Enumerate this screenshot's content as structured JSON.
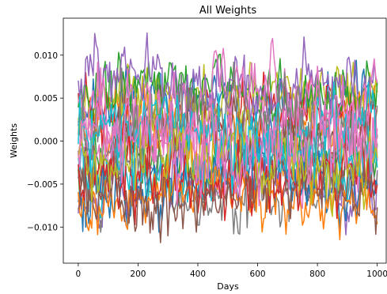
{
  "chart_data": {
    "type": "line",
    "title": "All Weights",
    "xlabel": "Days",
    "ylabel": "Weights",
    "xlim": [
      -50,
      1030
    ],
    "ylim": [
      -0.0142,
      0.0143
    ],
    "x_ticks": [
      0,
      200,
      400,
      600,
      800,
      1000
    ],
    "x_tick_labels": [
      "0",
      "200",
      "400",
      "600",
      "800",
      "1000"
    ],
    "y_ticks": [
      -0.01,
      -0.005,
      0.0,
      0.005,
      0.01
    ],
    "y_tick_labels": [
      "−0.010",
      "−0.005",
      "0.000",
      "0.005",
      "0.010"
    ],
    "grid": false,
    "legend": "none",
    "x_range": [
      0,
      1000
    ],
    "point_step": 5,
    "series_palette": [
      "#1f77b4",
      "#ff7f0e",
      "#2ca02c",
      "#d62728",
      "#9467bd",
      "#8c564b",
      "#e377c2",
      "#7f7f7f",
      "#bcbd22",
      "#17becf"
    ],
    "series": [
      {
        "color": "#1f77b4",
        "mean": 0.004,
        "spread": 0.0032,
        "seed": 11
      },
      {
        "color": "#ff7f0e",
        "mean": 0.0015,
        "spread": 0.004,
        "seed": 23
      },
      {
        "color": "#2ca02c",
        "mean": -0.002,
        "spread": 0.0038,
        "seed": 37
      },
      {
        "color": "#d62728",
        "mean": 0.003,
        "spread": 0.0035,
        "seed": 41
      },
      {
        "color": "#9467bd",
        "mean": -0.004,
        "spread": 0.0034,
        "seed": 53
      },
      {
        "color": "#8c564b",
        "mean": 0.0005,
        "spread": 0.0042,
        "seed": 67
      },
      {
        "color": "#e377c2",
        "mean": -0.001,
        "spread": 0.0044,
        "seed": 71
      },
      {
        "color": "#7f7f7f",
        "mean": -0.0055,
        "spread": 0.003,
        "seed": 83
      },
      {
        "color": "#bcbd22",
        "mean": 0.005,
        "spread": 0.0028,
        "seed": 97
      },
      {
        "color": "#17becf",
        "mean": -0.003,
        "spread": 0.0036,
        "seed": 101
      },
      {
        "color": "#1f77b4",
        "mean": -0.005,
        "spread": 0.0032,
        "seed": 113
      },
      {
        "color": "#ff7f0e",
        "mean": -0.0065,
        "spread": 0.0028,
        "seed": 127
      },
      {
        "color": "#2ca02c",
        "mean": 0.006,
        "spread": 0.003,
        "seed": 131
      },
      {
        "color": "#d62728",
        "mean": -0.0045,
        "spread": 0.0033,
        "seed": 149
      },
      {
        "color": "#9467bd",
        "mean": 0.0065,
        "spread": 0.0032,
        "seed": 151
      },
      {
        "color": "#8c564b",
        "mean": -0.006,
        "spread": 0.003,
        "seed": 163
      },
      {
        "color": "#e377c2",
        "mean": 0.0045,
        "spread": 0.0036,
        "seed": 173
      },
      {
        "color": "#7f7f7f",
        "mean": 0.002,
        "spread": 0.004,
        "seed": 181
      },
      {
        "color": "#bcbd22",
        "mean": -0.0015,
        "spread": 0.0036,
        "seed": 191
      },
      {
        "color": "#17becf",
        "mean": 0.001,
        "spread": 0.004,
        "seed": 197
      },
      {
        "color": "#e377c2",
        "mean": 0.0,
        "spread": 0.0045,
        "seed": 211
      }
    ]
  }
}
